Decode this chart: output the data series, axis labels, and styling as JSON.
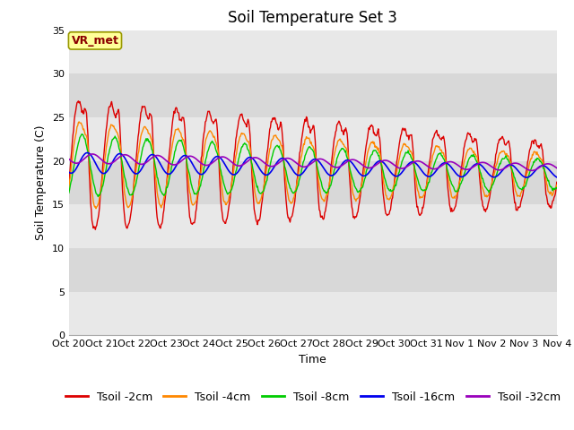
{
  "title": "Soil Temperature Set 3",
  "ylabel": "Soil Temperature (C)",
  "xlabel": "Time",
  "annotation_label": "VR_met",
  "ylim": [
    0,
    35
  ],
  "yticks": [
    0,
    5,
    10,
    15,
    20,
    25,
    30,
    35
  ],
  "series_colors": {
    "Tsoil -2cm": "#dd0000",
    "Tsoil -4cm": "#ff8800",
    "Tsoil -8cm": "#00cc00",
    "Tsoil -16cm": "#0000ee",
    "Tsoil -32cm": "#9900bb"
  },
  "series_order": [
    "Tsoil -2cm",
    "Tsoil -4cm",
    "Tsoil -8cm",
    "Tsoil -16cm",
    "Tsoil -32cm"
  ],
  "xtick_labels": [
    "Oct 20",
    "Oct 21",
    "Oct 22",
    "Oct 23",
    "Oct 24",
    "Oct 25",
    "Oct 26",
    "Oct 27",
    "Oct 28",
    "Oct 29",
    "Oct 30",
    "Oct 31",
    "Nov 1",
    "Nov 2",
    "Nov 3",
    "Nov 4"
  ],
  "background_color": "#ffffff",
  "plot_bg_color": "#f0f0f0",
  "grid_color": "#ffffff",
  "band_colors": [
    "#e8e8e8",
    "#d8d8d8"
  ],
  "title_fontsize": 12,
  "axis_label_fontsize": 9,
  "tick_fontsize": 8,
  "legend_fontsize": 9,
  "figsize": [
    6.4,
    4.8
  ],
  "dpi": 100
}
